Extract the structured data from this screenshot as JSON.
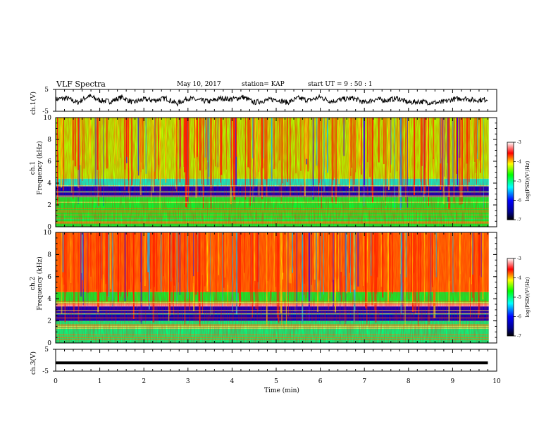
{
  "header": {
    "title": "VLF Spectra",
    "date": "May 10, 2017",
    "station": "station= KAP",
    "start": "start  UT  =   9  : 50 : 1"
  },
  "chart_data": [
    {
      "type": "line",
      "panel": "ch1-waveform",
      "ylabel": "ch.1(V)",
      "ylim": [
        -5,
        5
      ],
      "ytick_labels": [
        "5",
        "-5"
      ],
      "x": [
        0,
        0.25,
        0.5,
        0.75,
        1,
        1.25,
        1.5,
        1.75,
        2,
        2.25,
        2.5,
        2.75,
        3,
        3.25,
        3.5,
        3.75,
        4,
        4.25,
        4.5,
        4.75,
        5,
        5.25,
        5.5,
        5.75,
        6,
        6.25,
        6.5,
        6.75,
        7,
        7.25,
        7.5,
        7.75,
        8,
        8.25,
        8.5,
        8.75,
        9,
        9.25,
        9.5,
        9.8
      ],
      "values": [
        0.5,
        1,
        -1,
        2,
        0,
        -0.5,
        1.5,
        -1,
        0.5,
        0,
        1,
        -1.5,
        1,
        0,
        -0.5,
        1,
        0.5,
        1.5,
        -1,
        0,
        0.5,
        -1,
        1,
        0,
        1.5,
        -0.5,
        0.5,
        1,
        -1,
        0.5,
        0,
        1,
        -1,
        -0.5,
        -1,
        -1,
        0.5,
        1,
        0,
        0.5
      ]
    },
    {
      "type": "heatmap",
      "panel": "ch1-spectrogram",
      "ylabel": "ch.1\nFrequency  (kHz)",
      "ylim": [
        0,
        10
      ],
      "ytick_labels": [
        "0",
        "2",
        "4",
        "6",
        "8",
        "10"
      ],
      "colorbar": {
        "label": "log(PSD)(V²/Hz)",
        "range": [
          -7,
          -3
        ],
        "tick_labels": [
          "-3",
          "-4",
          "-5",
          "-6",
          "-7"
        ]
      },
      "bands_khz": [
        {
          "from": 10.0,
          "to": 4.4,
          "level": -4.3
        },
        {
          "from": 4.4,
          "to": 3.7,
          "level": -5.2
        },
        {
          "from": 3.7,
          "to": 2.7,
          "level": -6.3
        },
        {
          "from": 2.7,
          "to": 0.0,
          "level": -4.8
        }
      ]
    },
    {
      "type": "heatmap",
      "panel": "ch2-spectrogram",
      "ylabel": "ch.2\nFrequency  (kHz)",
      "ylim": [
        0,
        10
      ],
      "ytick_labels": [
        "0",
        "2",
        "4",
        "6",
        "8",
        "10"
      ],
      "colorbar": {
        "label": "log(PSD)(V²/Hz)",
        "range": [
          -7,
          -3
        ],
        "tick_labels": [
          "-3",
          "-4",
          "-5",
          "-6",
          "-7"
        ]
      },
      "bands_khz": [
        {
          "from": 10.0,
          "to": 4.6,
          "level": -3.8
        },
        {
          "from": 4.6,
          "to": 3.6,
          "level": -4.8
        },
        {
          "from": 3.6,
          "to": 3.3,
          "level": -3.2
        },
        {
          "from": 3.3,
          "to": 2.0,
          "level": -6.3
        },
        {
          "from": 2.0,
          "to": 0.0,
          "level": -5.0
        }
      ]
    },
    {
      "type": "line",
      "panel": "ch3-waveform",
      "ylabel": "ch.3(V)",
      "ylim": [
        -5,
        5
      ],
      "ytick_labels": [
        "5",
        "-5"
      ],
      "x": [
        0,
        9.8
      ],
      "values": [
        -1.2,
        -1.2
      ]
    }
  ],
  "xaxis": {
    "label": "Time  (min)",
    "range": [
      0,
      10
    ],
    "tick_labels": [
      "0",
      "1",
      "2",
      "3",
      "4",
      "5",
      "6",
      "7",
      "8",
      "9",
      "10"
    ]
  }
}
